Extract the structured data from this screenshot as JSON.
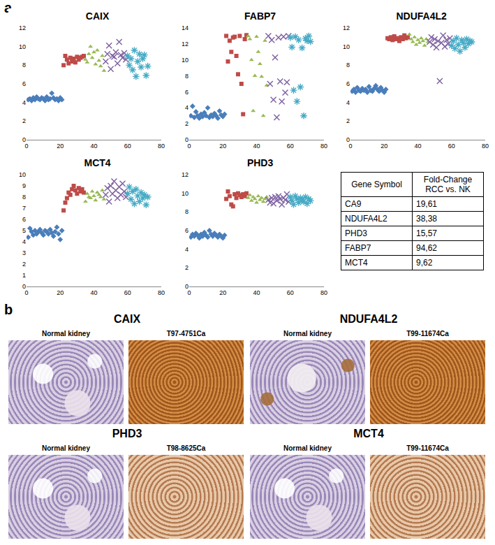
{
  "panel_labels": [
    "a",
    "b"
  ],
  "chart_data": [
    {
      "type": "scatter",
      "title": "CAIX",
      "xlim": [
        0,
        80
      ],
      "xticks": [
        0,
        20,
        40,
        60,
        80
      ],
      "ylim": [
        0,
        12
      ],
      "yticks": [
        0,
        2,
        4,
        6,
        8,
        10,
        12
      ],
      "grid": false,
      "series": [
        {
          "color": "#4a7ebb",
          "marker": "diamond",
          "x": [
            1,
            2,
            3,
            4,
            5,
            6,
            7,
            8,
            9,
            10,
            11,
            12,
            13,
            14,
            15,
            16,
            17,
            18,
            19,
            20,
            21
          ],
          "values": [
            4.3,
            4.4,
            4.2,
            4.5,
            4.3,
            4.6,
            4.4,
            4.3,
            4.5,
            4.4,
            4.2,
            4.6,
            4.3,
            4.4,
            5.0,
            4.5,
            4.3,
            4.4,
            4.2,
            4.5,
            4.3
          ]
        },
        {
          "color": "#be4b48",
          "marker": "square",
          "x": [
            22,
            23,
            24,
            25,
            26,
            27,
            28,
            29,
            30,
            31,
            32,
            33,
            34
          ],
          "values": [
            8.0,
            9.0,
            8.6,
            8.2,
            8.8,
            8.4,
            8.7,
            8.3,
            8.9,
            8.6,
            8.8,
            8.9,
            9.0
          ]
        },
        {
          "color": "#98b954",
          "marker": "triangle",
          "x": [
            35,
            36,
            37,
            38,
            39,
            40,
            41,
            42,
            43,
            44,
            45,
            46
          ],
          "values": [
            8.6,
            8.3,
            9.2,
            10.0,
            8.8,
            9.4,
            8.1,
            9.6,
            8.5,
            7.9,
            9.0,
            7.4
          ]
        },
        {
          "color": "#7d60a0",
          "marker": "x",
          "x": [
            47,
            48,
            49,
            50,
            51,
            52,
            53,
            54,
            55,
            56,
            57,
            58,
            59
          ],
          "values": [
            8.4,
            9.2,
            10.1,
            7.6,
            9.0,
            8.9,
            9.4,
            8.2,
            10.5,
            9.1,
            8.8,
            9.3,
            8.6
          ]
        },
        {
          "color": "#46aac5",
          "marker": "asterisk",
          "x": [
            60,
            61,
            62,
            63,
            64,
            65,
            66,
            67,
            68,
            69,
            70,
            71,
            72
          ],
          "values": [
            9.0,
            8.0,
            8.7,
            7.5,
            9.6,
            6.8,
            8.4,
            9.2,
            7.8,
            8.7,
            9.1,
            6.9,
            7.9
          ]
        }
      ]
    },
    {
      "type": "scatter",
      "title": "FABP7",
      "xlim": [
        0,
        80
      ],
      "xticks": [
        0,
        20,
        40,
        60,
        80
      ],
      "ylim": [
        0,
        14
      ],
      "yticks": [
        0,
        2,
        4,
        6,
        8,
        10,
        12,
        14
      ],
      "grid": false,
      "series": [
        {
          "color": "#4a7ebb",
          "marker": "diamond",
          "x": [
            1,
            2,
            3,
            4,
            5,
            6,
            7,
            8,
            9,
            10,
            11,
            12,
            13,
            14,
            15,
            16,
            17,
            18,
            19,
            20,
            21
          ],
          "values": [
            3.0,
            4.2,
            2.8,
            3.5,
            3.0,
            2.7,
            3.2,
            2.9,
            3.4,
            3.0,
            4.0,
            2.8,
            3.1,
            2.9,
            3.3,
            3.0,
            2.7,
            3.6,
            3.1,
            2.9,
            3.2
          ]
        },
        {
          "color": "#be4b48",
          "marker": "square",
          "x": [
            22,
            23,
            24,
            25,
            26,
            27,
            28,
            29,
            30,
            31,
            32,
            33,
            34
          ],
          "values": [
            13.0,
            9.8,
            12.4,
            11.0,
            12.8,
            12.9,
            10.5,
            8.2,
            13.0,
            7.0,
            3.2,
            12.6,
            13.1
          ]
        },
        {
          "color": "#98b954",
          "marker": "triangle",
          "x": [
            35,
            36,
            37,
            38,
            39,
            40,
            41,
            42,
            43,
            44,
            45,
            46
          ],
          "values": [
            13.0,
            12.6,
            10.0,
            3.6,
            8.0,
            12.9,
            11.0,
            9.5,
            7.9,
            3.0,
            12.4,
            6.8
          ]
        },
        {
          "color": "#7d60a0",
          "marker": "x",
          "x": [
            47,
            48,
            49,
            50,
            51,
            52,
            53,
            54,
            55,
            56,
            57,
            58,
            59
          ],
          "values": [
            13.0,
            7.0,
            12.5,
            5.0,
            10.3,
            2.8,
            12.8,
            7.3,
            4.8,
            12.9,
            5.9,
            7.2,
            13.0
          ]
        },
        {
          "color": "#46aac5",
          "marker": "asterisk",
          "x": [
            60,
            61,
            62,
            63,
            64,
            65,
            66,
            67,
            68,
            69,
            70,
            71,
            72
          ],
          "values": [
            12.8,
            11.6,
            6.2,
            12.9,
            4.8,
            12.5,
            6.6,
            11.5,
            3.0,
            12.7,
            12.4,
            13.0,
            12.3
          ]
        }
      ]
    },
    {
      "type": "scatter",
      "title": "NDUFA4L2",
      "xlim": [
        0,
        80
      ],
      "xticks": [
        0,
        20,
        40,
        60,
        80
      ],
      "ylim": [
        0,
        12
      ],
      "yticks": [
        0,
        2,
        4,
        6,
        8,
        10,
        12
      ],
      "grid": false,
      "series": [
        {
          "color": "#4a7ebb",
          "marker": "diamond",
          "x": [
            1,
            2,
            3,
            4,
            5,
            6,
            7,
            8,
            9,
            10,
            11,
            12,
            13,
            14,
            15,
            16,
            17,
            18,
            19,
            20,
            21
          ],
          "values": [
            5.2,
            5.4,
            5.1,
            5.6,
            5.3,
            5.2,
            5.5,
            5.3,
            5.4,
            5.1,
            5.7,
            5.3,
            5.2,
            5.5,
            5.8,
            5.4,
            5.2,
            5.6,
            5.3,
            5.1,
            5.4
          ]
        },
        {
          "color": "#be4b48",
          "marker": "square",
          "x": [
            22,
            23,
            24,
            25,
            26,
            27,
            28,
            29,
            30,
            31,
            32,
            33,
            34
          ],
          "values": [
            10.9,
            10.8,
            11.0,
            10.7,
            11.1,
            10.8,
            10.9,
            10.6,
            11.0,
            10.8,
            11.2,
            10.9,
            11.0
          ]
        },
        {
          "color": "#98b954",
          "marker": "triangle",
          "x": [
            35,
            36,
            37,
            38,
            39,
            40,
            41,
            42,
            43,
            44,
            45,
            46
          ],
          "values": [
            11.3,
            10.8,
            10.5,
            11.0,
            10.2,
            10.7,
            10.4,
            10.9,
            10.6,
            10.1,
            10.8,
            10.5
          ]
        },
        {
          "color": "#7d60a0",
          "marker": "x",
          "x": [
            47,
            48,
            49,
            50,
            51,
            52,
            53,
            54,
            55,
            56,
            57,
            58,
            59
          ],
          "values": [
            10.5,
            11.0,
            10.2,
            10.8,
            9.9,
            10.6,
            6.3,
            10.4,
            11.2,
            10.0,
            10.7,
            10.3,
            10.9
          ]
        },
        {
          "color": "#46aac5",
          "marker": "asterisk",
          "x": [
            60,
            61,
            62,
            63,
            64,
            65,
            66,
            67,
            68,
            69,
            70,
            71,
            72
          ],
          "values": [
            10.1,
            10.6,
            9.8,
            10.9,
            10.2,
            9.5,
            10.7,
            10.4,
            9.9,
            10.8,
            10.3,
            10.6,
            10.5
          ]
        }
      ]
    },
    {
      "type": "scatter",
      "title": "MCT4",
      "xlim": [
        0,
        80
      ],
      "xticks": [
        0,
        20,
        40,
        60,
        80
      ],
      "ylim": [
        0,
        10
      ],
      "yticks": [
        0,
        1,
        2,
        3,
        4,
        5,
        6,
        7,
        8,
        9,
        10
      ],
      "grid": false,
      "series": [
        {
          "color": "#4a7ebb",
          "marker": "diamond",
          "x": [
            1,
            2,
            3,
            4,
            5,
            6,
            7,
            8,
            9,
            10,
            11,
            12,
            13,
            14,
            15,
            16,
            17,
            18,
            19,
            20,
            21
          ],
          "values": [
            4.4,
            5.2,
            4.9,
            4.6,
            5.0,
            4.7,
            4.9,
            5.1,
            4.8,
            4.6,
            5.0,
            4.9,
            4.7,
            5.1,
            4.8,
            4.5,
            4.9,
            5.3,
            4.7,
            4.2,
            5.0
          ]
        },
        {
          "color": "#be4b48",
          "marker": "square",
          "x": [
            22,
            23,
            24,
            25,
            26,
            27,
            28,
            29,
            30,
            31,
            32,
            33,
            34
          ],
          "values": [
            6.8,
            7.5,
            7.9,
            8.4,
            8.2,
            8.7,
            9.0,
            8.6,
            8.3,
            8.8,
            8.5,
            8.7,
            8.4
          ]
        },
        {
          "color": "#98b954",
          "marker": "triangle",
          "x": [
            35,
            36,
            37,
            38,
            39,
            40,
            41,
            42,
            43,
            44,
            45,
            46
          ],
          "values": [
            7.6,
            8.3,
            8.0,
            7.9,
            8.5,
            8.1,
            7.7,
            8.4,
            8.2,
            8.0,
            8.6,
            7.8
          ]
        },
        {
          "color": "#7d60a0",
          "marker": "x",
          "x": [
            47,
            48,
            49,
            50,
            51,
            52,
            53,
            54,
            55,
            56,
            57,
            58,
            59
          ],
          "values": [
            8.2,
            8.8,
            7.6,
            9.0,
            8.3,
            9.4,
            8.6,
            7.9,
            8.9,
            8.2,
            9.2,
            8.5,
            8.0
          ]
        },
        {
          "color": "#46aac5",
          "marker": "asterisk",
          "x": [
            60,
            61,
            62,
            63,
            64,
            65,
            66,
            67,
            68,
            69,
            70,
            71,
            72
          ],
          "values": [
            8.3,
            8.9,
            7.8,
            8.5,
            7.4,
            8.7,
            8.1,
            7.6,
            8.4,
            7.9,
            8.2,
            7.3,
            8.0
          ]
        }
      ]
    },
    {
      "type": "scatter",
      "title": "PHD3",
      "xlim": [
        0,
        80
      ],
      "xticks": [
        0,
        20,
        40,
        60,
        80
      ],
      "ylim": [
        0,
        12
      ],
      "yticks": [
        0,
        2,
        4,
        6,
        8,
        10,
        12
      ],
      "grid": false,
      "series": [
        {
          "color": "#4a7ebb",
          "marker": "diamond",
          "x": [
            1,
            2,
            3,
            4,
            5,
            6,
            7,
            8,
            9,
            10,
            11,
            12,
            13,
            14,
            15,
            16,
            17,
            18,
            19,
            20,
            21
          ],
          "values": [
            5.3,
            5.6,
            5.4,
            5.7,
            5.5,
            5.2,
            5.6,
            5.4,
            5.8,
            5.5,
            5.3,
            6.0,
            5.6,
            5.4,
            5.7,
            5.5,
            5.3,
            5.6,
            5.4,
            5.2,
            5.5
          ]
        },
        {
          "color": "#be4b48",
          "marker": "square",
          "x": [
            22,
            23,
            24,
            25,
            26,
            27,
            28,
            29,
            30,
            31,
            32,
            33,
            34
          ],
          "values": [
            9.4,
            10.2,
            9.7,
            8.8,
            8.6,
            9.9,
            9.5,
            10.0,
            9.8,
            9.6,
            9.9,
            9.7,
            10.0
          ]
        },
        {
          "color": "#98b954",
          "marker": "triangle",
          "x": [
            35,
            36,
            37,
            38,
            39,
            40,
            41,
            42,
            43,
            44,
            45,
            46
          ],
          "values": [
            9.5,
            9.8,
            9.2,
            9.6,
            9.4,
            9.0,
            9.7,
            9.3,
            9.5,
            9.1,
            9.4,
            9.6
          ]
        },
        {
          "color": "#7d60a0",
          "marker": "x",
          "x": [
            47,
            48,
            49,
            50,
            51,
            52,
            53,
            54,
            55,
            56,
            57,
            58,
            59
          ],
          "values": [
            9.3,
            9.0,
            9.5,
            8.9,
            9.6,
            9.2,
            9.7,
            9.4,
            8.8,
            9.5,
            9.3,
            9.9,
            9.1
          ]
        },
        {
          "color": "#46aac5",
          "marker": "asterisk",
          "x": [
            60,
            61,
            62,
            63,
            64,
            65,
            66,
            67,
            68,
            69,
            70,
            71,
            72
          ],
          "values": [
            9.6,
            9.2,
            8.8,
            9.7,
            9.4,
            9.0,
            9.5,
            9.3,
            9.1,
            9.6,
            8.9,
            9.4,
            9.2
          ]
        }
      ]
    }
  ],
  "table": {
    "header": [
      "Gene Symbol",
      "Fold-Change RCC vs. NK"
    ],
    "rows": [
      [
        "CA9",
        "19,61"
      ],
      [
        "NDUFA4L2",
        "38,38"
      ],
      [
        "PHD3",
        "15,57"
      ],
      [
        "FABP7",
        "94,62"
      ],
      [
        "MCT4",
        "9,62"
      ]
    ]
  },
  "stains": [
    {
      "title": "CAIX",
      "images": [
        "Normal kidney",
        "T97-4751Ca"
      ]
    },
    {
      "title": "NDUFA4L2",
      "images": [
        "Normal kidney",
        "T99-11674Ca"
      ]
    },
    {
      "title": "PHD3",
      "images": [
        "Normal kidney",
        "T98-8625Ca"
      ]
    },
    {
      "title": "MCT4",
      "images": [
        "Normal kidney",
        "T99-11674Ca"
      ]
    }
  ]
}
